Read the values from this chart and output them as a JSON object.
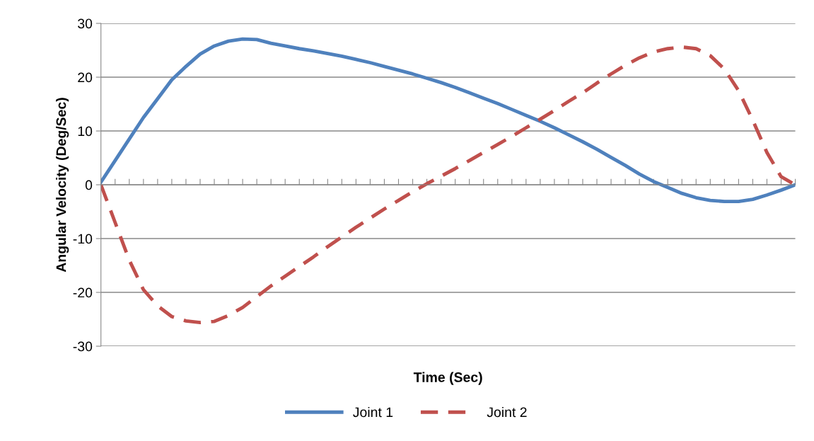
{
  "chart_data": {
    "type": "line",
    "xlabel": "Time (Sec)",
    "ylabel": "Angular Velocity (Deg/Sec)",
    "categories": [
      null,
      null,
      null,
      null,
      null,
      null,
      null,
      null,
      null,
      null,
      null,
      null,
      null,
      null,
      null,
      null,
      null,
      null,
      null,
      null,
      null,
      null,
      null,
      null,
      null,
      null,
      null,
      null,
      null,
      null,
      null,
      null,
      null,
      null,
      null,
      null,
      null,
      null,
      null,
      null,
      null,
      null,
      null,
      null,
      null,
      null,
      null,
      null,
      null,
      null
    ],
    "series": [
      {
        "name": "Joint 1",
        "color": "#4f81bd",
        "line_style": "solid",
        "values": [
          0.5,
          4.5,
          8.5,
          12.5,
          16,
          19.5,
          22,
          24.3,
          25.8,
          26.7,
          27.1,
          27,
          26.3,
          25.8,
          25.3,
          24.9,
          24.4,
          23.9,
          23.3,
          22.7,
          22,
          21.3,
          20.6,
          19.8,
          19,
          18.1,
          17.1,
          16.1,
          15.1,
          14,
          12.9,
          11.8,
          10.6,
          9.3,
          8,
          6.6,
          5.1,
          3.6,
          2,
          0.6,
          -0.5,
          -1.6,
          -2.4,
          -2.9,
          -3.1,
          -3.1,
          -2.7,
          -1.9,
          -1,
          0
        ]
      },
      {
        "name": "Joint 2",
        "color": "#c0504d",
        "line_style": "dashed",
        "values": [
          0,
          -7,
          -14,
          -19.5,
          -22.5,
          -24.5,
          -25.3,
          -25.6,
          -25.4,
          -24.3,
          -22.8,
          -20.8,
          -18.8,
          -17,
          -15.2,
          -13.4,
          -11.5,
          -9.7,
          -7.9,
          -6.2,
          -4.5,
          -2.9,
          -1.3,
          0.2,
          1.6,
          3,
          4.5,
          6,
          7.5,
          9,
          10.6,
          12.2,
          13.8,
          15.5,
          17.1,
          18.9,
          20.6,
          22.2,
          23.6,
          24.7,
          25.3,
          25.6,
          25.3,
          24,
          21.5,
          17.5,
          12,
          6,
          1.5,
          0
        ]
      }
    ],
    "ylim": [
      -30,
      30
    ],
    "yticks": [
      -30,
      -20,
      -10,
      0,
      10,
      20,
      30
    ],
    "grid": "y",
    "legend": "bottom",
    "marker": "none"
  }
}
